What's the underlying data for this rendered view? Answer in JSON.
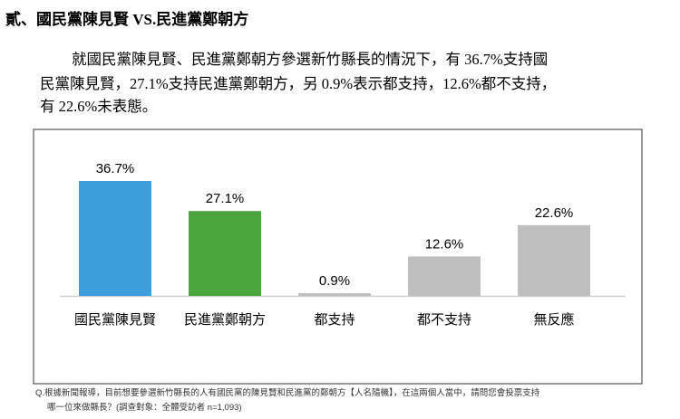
{
  "heading": "貳、國民黨陳見賢 VS.民進黨鄭朝方",
  "paragraph": [
    "就國民黨陳見賢、民進黨鄭朝方參選新竹縣長的情況下，有 36.7%支持國",
    "民黨陳見賢，27.1%支持民進黨鄭朝方，另 0.9%表示都支持，12.6%都不支持，",
    "有 22.6%未表態。"
  ],
  "chart_data": {
    "type": "bar",
    "categories": [
      "國民黨陳見賢",
      "民進黨鄭朝方",
      "都支持",
      "都不支持",
      "無反應"
    ],
    "values": [
      36.7,
      27.1,
      0.9,
      12.6,
      22.6
    ],
    "value_labels": [
      "36.7%",
      "27.1%",
      "0.9%",
      "12.6%",
      "22.6%"
    ],
    "colors": [
      "#3c9fdc",
      "#4ba63b",
      "#bfbfbf",
      "#bfbfbf",
      "#bfbfbf"
    ]
  },
  "footnote": [
    "Q.根據新聞報導，目前想要參選新竹縣長的人有國民黨的陳見賢和民進黨的鄭朝方【人名隨機】，在這兩個人當中，請問您會投票支持",
    "哪一位來做縣長？(調查對象：全體受訪者 n=1,093)"
  ]
}
